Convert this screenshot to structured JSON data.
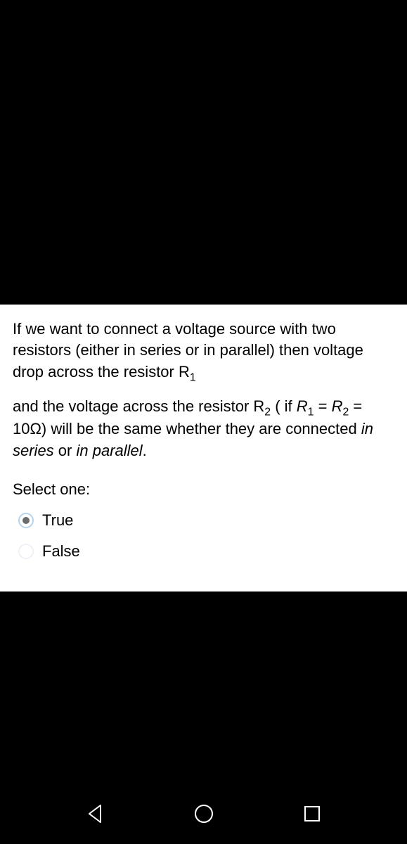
{
  "question": {
    "paragraph1_html": "If we want to connect a voltage source with two resistors (either in series or in parallel) then voltage drop across the resistor R<span class=\"sub\">1</span>",
    "paragraph2_html": "and the voltage across the resistor R<span class=\"sub\">2</span> ( if <span class=\"ital\">R</span><span class=\"sub\">1</span> = <span class=\"ital\">R</span><span class=\"sub\">2</span> = 10Ω) will be the same whether they are connected <span class=\"ital\">in series</span> or <span class=\"ital\">in parallel</span>."
  },
  "prompt": "Select one:",
  "options": [
    {
      "label": "True",
      "selected": true
    },
    {
      "label": "False",
      "selected": false
    }
  ],
  "colors": {
    "page_bg": "#000000",
    "card_bg": "#ffffff",
    "text": "#000000",
    "radio_selected_border": "#b9d3ee",
    "radio_selected_dot": "#6d6d6d",
    "radio_unselected_border": "#eef2f6",
    "nav_icon": "#ffffff"
  },
  "nav": {
    "back": "back-triangle",
    "home": "home-circle",
    "recent": "recent-square"
  }
}
